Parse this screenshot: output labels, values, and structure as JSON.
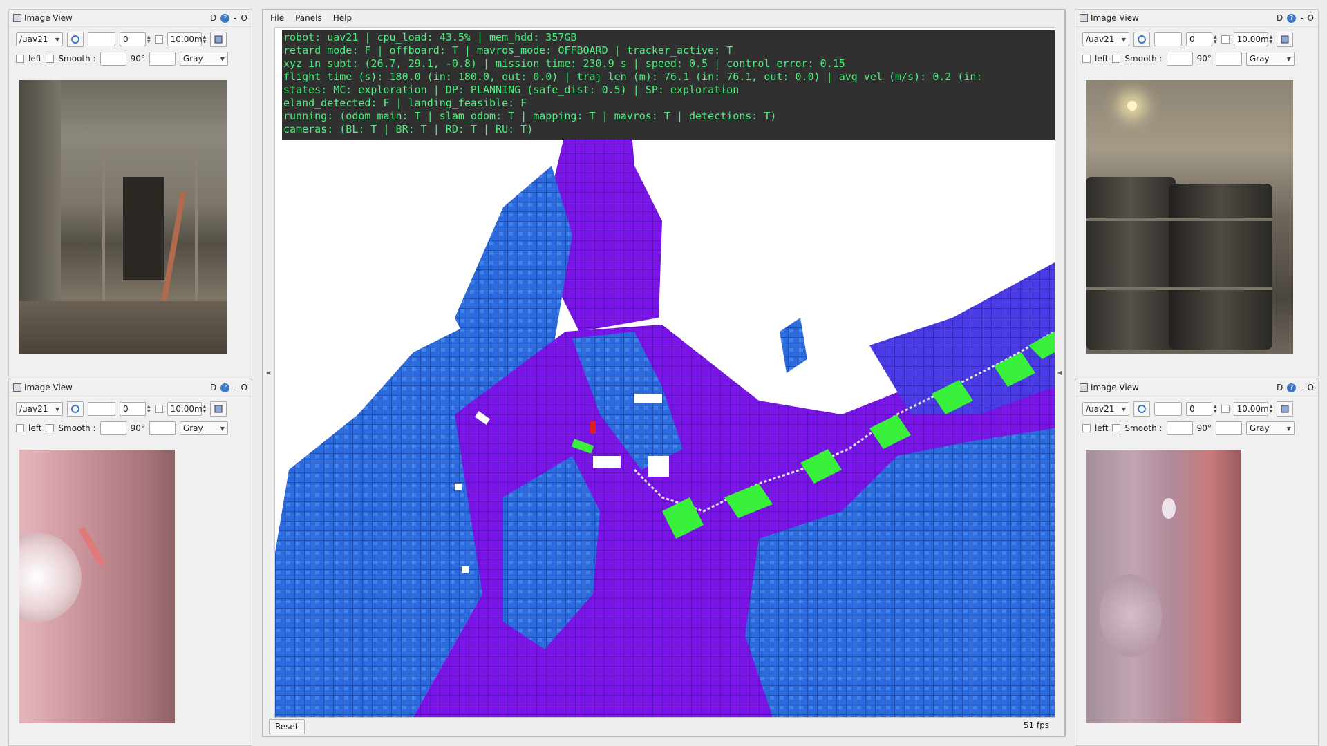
{
  "image_view": {
    "title": "Image View",
    "title_buttons": [
      "D",
      "?",
      "-",
      "O"
    ],
    "topic": "/uav21",
    "spin_value": "0",
    "max_value": "10.00m",
    "left_label": "left",
    "smooth_label": "Smooth :",
    "rotation": "90°",
    "colormap": "Gray"
  },
  "rviz": {
    "menu": [
      "File",
      "Panels",
      "Help"
    ],
    "overlay_lines": [
      "robot: uav21 | cpu_load: 43.5% | mem_hdd: 357GB",
      "retard mode: F | offboard: T | mavros_mode: OFFBOARD | tracker_active: T",
      "xyz in subt: (26.7, 29.1, -0.8) | mission time: 230.9 s | speed: 0.5 | control error: 0.15",
      "flight time (s): 180.0 (in: 180.0, out: 0.0) | traj len (m): 76.1 (in: 76.1, out: 0.0) | avg vel (m/s): 0.2 (in:",
      "states: MC: exploration | DP: PLANNING (safe_dist: 0.5) | SP: exploration",
      "eland_detected: F | landing_feasible: F",
      "running: (odom_main: T | slam_odom: T | mapping: T | mavros: T | detections: T)",
      "cameras: (BL: T | BR: T | RD: T | RU: T)"
    ],
    "reset_label": "Reset",
    "fps": "51 fps"
  },
  "colors": {
    "overlay_text": "#49f07c",
    "overlay_bg": "#303030",
    "voxel_blue": "#1f5fd8",
    "voxel_purple": "#7a12e6",
    "path_green": "#39f03a"
  }
}
